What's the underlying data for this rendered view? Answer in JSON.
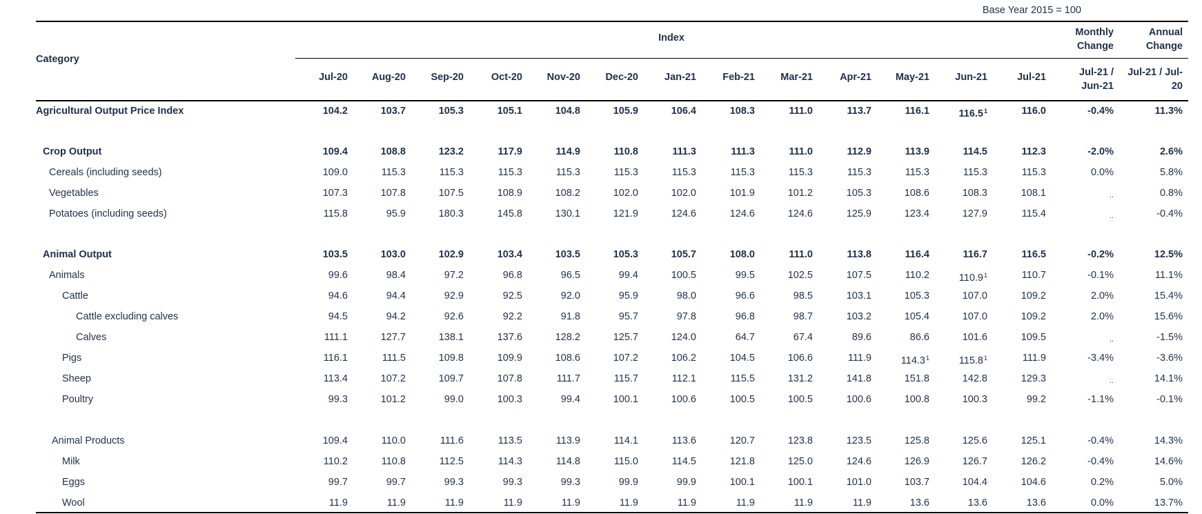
{
  "base_year_note": "Base Year 2015 = 100",
  "header": {
    "category": "Category",
    "index": "Index",
    "monthly_change": [
      "Monthly",
      "Change"
    ],
    "annual_change": [
      "Annual",
      "Change"
    ],
    "months": [
      "Jul-20",
      "Aug-20",
      "Sep-20",
      "Oct-20",
      "Nov-20",
      "Dec-20",
      "Jan-21",
      "Feb-21",
      "Mar-21",
      "Apr-21",
      "May-21",
      "Jun-21",
      "Jul-21"
    ],
    "monthly_period": [
      "Jul-21 /",
      "Jun-21"
    ],
    "annual_period": [
      "Jul-21 / Jul-",
      "20"
    ]
  },
  "rows": [
    {
      "label": "Agricultural Output Price Index",
      "indent": 0,
      "bold": true,
      "values": [
        "104.2",
        "103.7",
        "105.3",
        "105.1",
        "104.8",
        "105.9",
        "106.4",
        "108.3",
        "111.0",
        "113.7",
        "116.1",
        "116.5¹",
        "116.0"
      ],
      "monthly": "-0.4%",
      "annual": "11.3%"
    },
    {
      "label": "Crop Output",
      "indent": 1,
      "bold": true,
      "values": [
        "109.4",
        "108.8",
        "123.2",
        "117.9",
        "114.9",
        "110.8",
        "111.3",
        "111.3",
        "111.0",
        "112.9",
        "113.9",
        "114.5",
        "112.3"
      ],
      "monthly": "-2.0%",
      "annual": "2.6%"
    },
    {
      "label": "Cereals (including seeds)",
      "indent": 2,
      "bold": false,
      "values": [
        "109.0",
        "115.3",
        "115.3",
        "115.3",
        "115.3",
        "115.3",
        "115.3",
        "115.3",
        "115.3",
        "115.3",
        "115.3",
        "115.3",
        "115.3"
      ],
      "monthly": "0.0%",
      "annual": "5.8%"
    },
    {
      "label": "Vegetables",
      "indent": 2,
      "bold": false,
      "values": [
        "107.3",
        "107.8",
        "107.5",
        "108.9",
        "108.2",
        "102.0",
        "102.0",
        "101.9",
        "101.2",
        "105.3",
        "108.6",
        "108.3",
        "108.1"
      ],
      "monthly": "..",
      "annual": "0.8%"
    },
    {
      "label": "Potatoes (including seeds)",
      "indent": 2,
      "bold": false,
      "values": [
        "115.8",
        "95.9",
        "180.3",
        "145.8",
        "130.1",
        "121.9",
        "124.6",
        "124.6",
        "124.6",
        "125.9",
        "123.4",
        "127.9",
        "115.4"
      ],
      "monthly": "..",
      "annual": "-0.4%"
    },
    {
      "label": "Animal Output",
      "indent": 1,
      "bold": true,
      "values": [
        "103.5",
        "103.0",
        "102.9",
        "103.4",
        "103.5",
        "105.3",
        "105.7",
        "108.0",
        "111.0",
        "113.8",
        "116.4",
        "116.7",
        "116.5"
      ],
      "monthly": "-0.2%",
      "annual": "12.5%"
    },
    {
      "label": "Animals",
      "indent": 2,
      "bold": false,
      "values": [
        "99.6",
        "98.4",
        "97.2",
        "96.8",
        "96.5",
        "99.4",
        "100.5",
        "99.5",
        "102.5",
        "107.5",
        "110.2",
        "110.9¹",
        "110.7"
      ],
      "monthly": "-0.1%",
      "annual": "11.1%"
    },
    {
      "label": "Cattle",
      "indent": 3,
      "bold": false,
      "values": [
        "94.6",
        "94.4",
        "92.9",
        "92.5",
        "92.0",
        "95.9",
        "98.0",
        "96.6",
        "98.5",
        "103.1",
        "105.3",
        "107.0",
        "109.2"
      ],
      "monthly": "2.0%",
      "annual": "15.4%"
    },
    {
      "label": "Cattle excluding calves",
      "indent": 4,
      "bold": false,
      "values": [
        "94.5",
        "94.2",
        "92.6",
        "92.2",
        "91.8",
        "95.7",
        "97.8",
        "96.8",
        "98.7",
        "103.2",
        "105.4",
        "107.0",
        "109.2"
      ],
      "monthly": "2.0%",
      "annual": "15.6%"
    },
    {
      "label": "Calves",
      "indent": 4,
      "bold": false,
      "values": [
        "111.1",
        "127.7",
        "138.1",
        "137.6",
        "128.2",
        "125.7",
        "124.0",
        "64.7",
        "67.4",
        "89.6",
        "86.6",
        "101.6",
        "109.5"
      ],
      "monthly": "..",
      "annual": "-1.5%"
    },
    {
      "label": "Pigs",
      "indent": 3,
      "bold": false,
      "values": [
        "116.1",
        "111.5",
        "109.8",
        "109.9",
        "108.6",
        "107.2",
        "106.2",
        "104.5",
        "106.6",
        "111.9",
        "114.3¹",
        "115.8¹",
        "111.9"
      ],
      "monthly": "-3.4%",
      "annual": "-3.6%"
    },
    {
      "label": "Sheep",
      "indent": 3,
      "bold": false,
      "values": [
        "113.4",
        "107.2",
        "109.7",
        "107.8",
        "111.7",
        "115.7",
        "112.1",
        "115.5",
        "131.2",
        "141.8",
        "151.8",
        "142.8",
        "129.3"
      ],
      "monthly": "..",
      "annual": "14.1%"
    },
    {
      "label": "Poultry",
      "indent": 3,
      "bold": false,
      "values": [
        "99.3",
        "101.2",
        "99.0",
        "100.3",
        "99.4",
        "100.1",
        "100.6",
        "100.5",
        "100.5",
        "100.6",
        "100.8",
        "100.3",
        "99.2"
      ],
      "monthly": "-1.1%",
      "annual": "-0.1%"
    },
    {
      "label": "Animal Products",
      "indent": 2.3,
      "bold": false,
      "values": [
        "109.4",
        "110.0",
        "111.6",
        "113.5",
        "113.9",
        "114.1",
        "113.6",
        "120.7",
        "123.8",
        "123.5",
        "125.8",
        "125.6",
        "125.1"
      ],
      "monthly": "-0.4%",
      "annual": "14.3%"
    },
    {
      "label": "Milk",
      "indent": 3,
      "bold": false,
      "values": [
        "110.2",
        "110.8",
        "112.5",
        "114.3",
        "114.8",
        "115.0",
        "114.5",
        "121.8",
        "125.0",
        "124.6",
        "126.9",
        "126.7",
        "126.2"
      ],
      "monthly": "-0.4%",
      "annual": "14.6%"
    },
    {
      "label": "Eggs",
      "indent": 3,
      "bold": false,
      "values": [
        "99.7",
        "99.7",
        "99.3",
        "99.3",
        "99.3",
        "99.9",
        "99.9",
        "100.1",
        "100.1",
        "101.0",
        "103.7",
        "104.4",
        "104.6"
      ],
      "monthly": "0.2%",
      "annual": "5.0%"
    },
    {
      "label": "Wool",
      "indent": 3,
      "bold": false,
      "values": [
        "11.9",
        "11.9",
        "11.9",
        "11.9",
        "11.9",
        "11.9",
        "11.9",
        "11.9",
        "11.9",
        "11.9",
        "13.6",
        "13.6",
        "13.6"
      ],
      "monthly": "0.0%",
      "annual": "13.7%"
    }
  ]
}
